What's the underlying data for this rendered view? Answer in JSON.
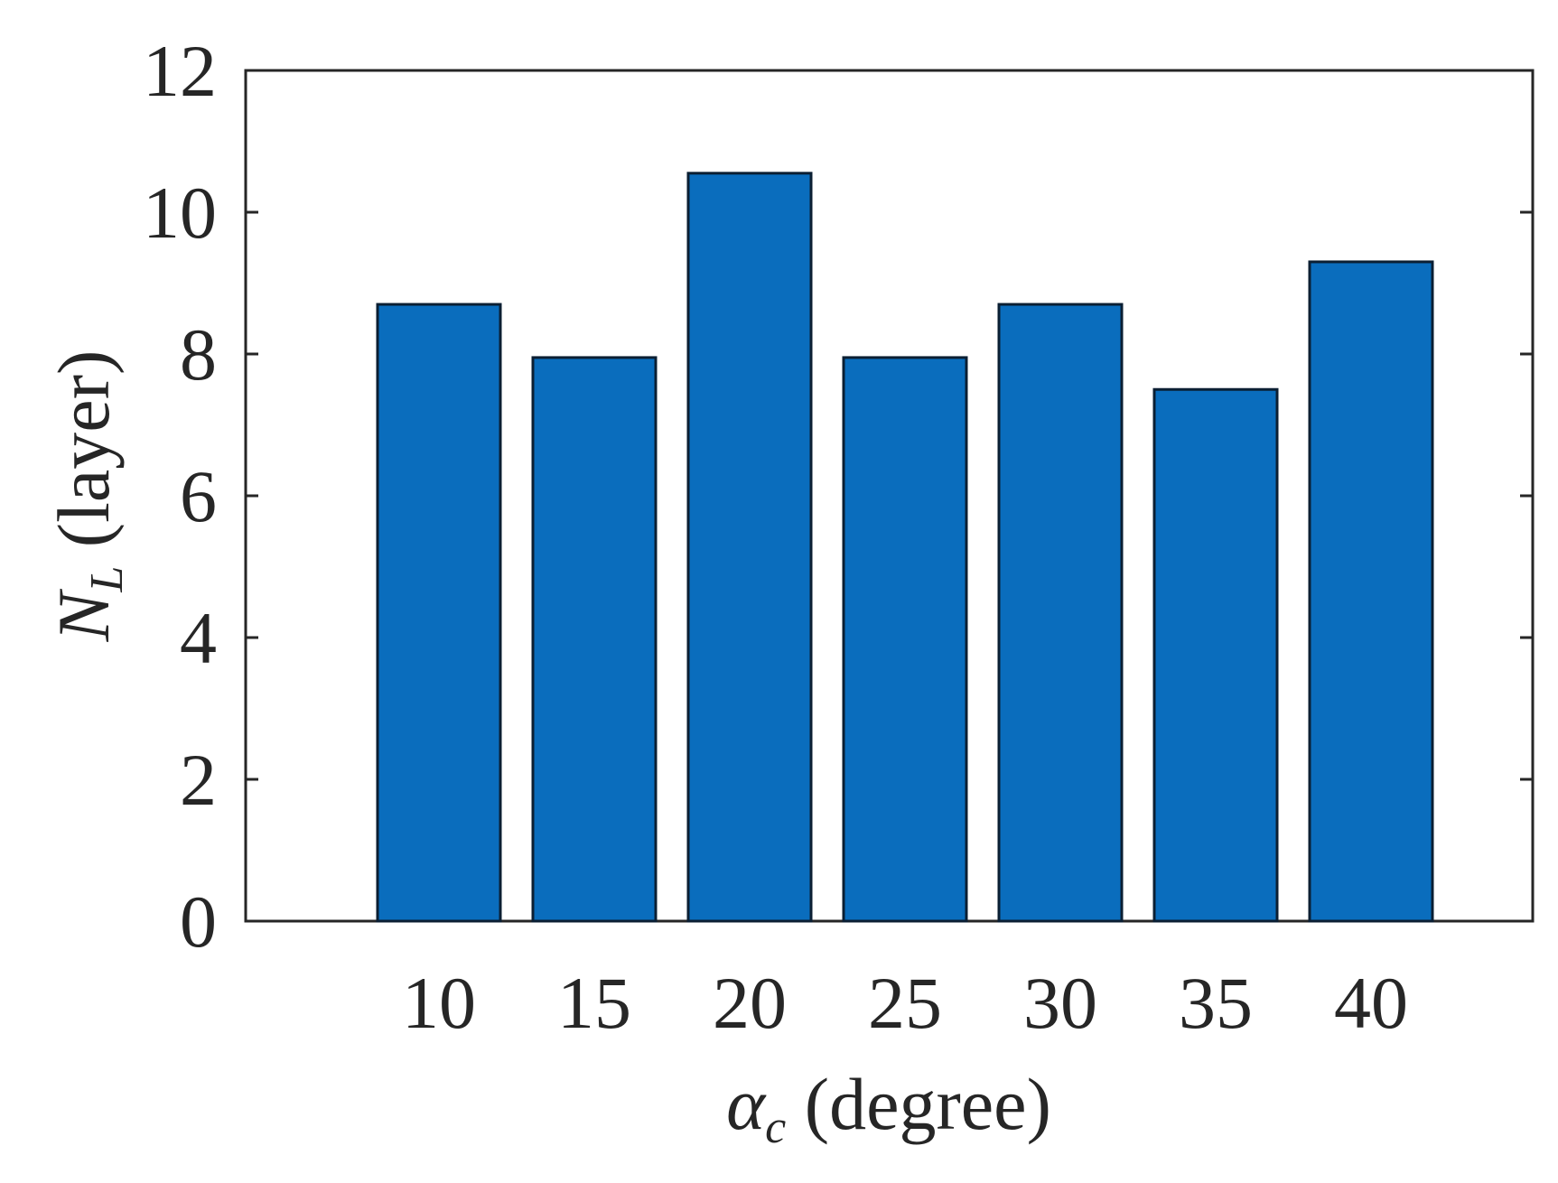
{
  "chart_data": {
    "type": "bar",
    "categories": [
      "10",
      "15",
      "20",
      "25",
      "30",
      "35",
      "40"
    ],
    "values": [
      8.7,
      7.95,
      10.55,
      7.95,
      8.7,
      7.5,
      9.3
    ],
    "xlabel": {
      "symbol": "α",
      "subscript": "c",
      "text": " (degree)"
    },
    "ylabel": {
      "symbol": "N",
      "subscript": "L",
      "text": " (layer)"
    },
    "ylim": [
      0,
      12
    ],
    "yticks": [
      "0",
      "2",
      "4",
      "6",
      "8",
      "10",
      "12"
    ],
    "grid": false,
    "colors": {
      "bar_fill": "#0A6DBD",
      "bar_edge": "#0B1F33",
      "axis": "#262626",
      "ylabel": "#262626"
    }
  }
}
